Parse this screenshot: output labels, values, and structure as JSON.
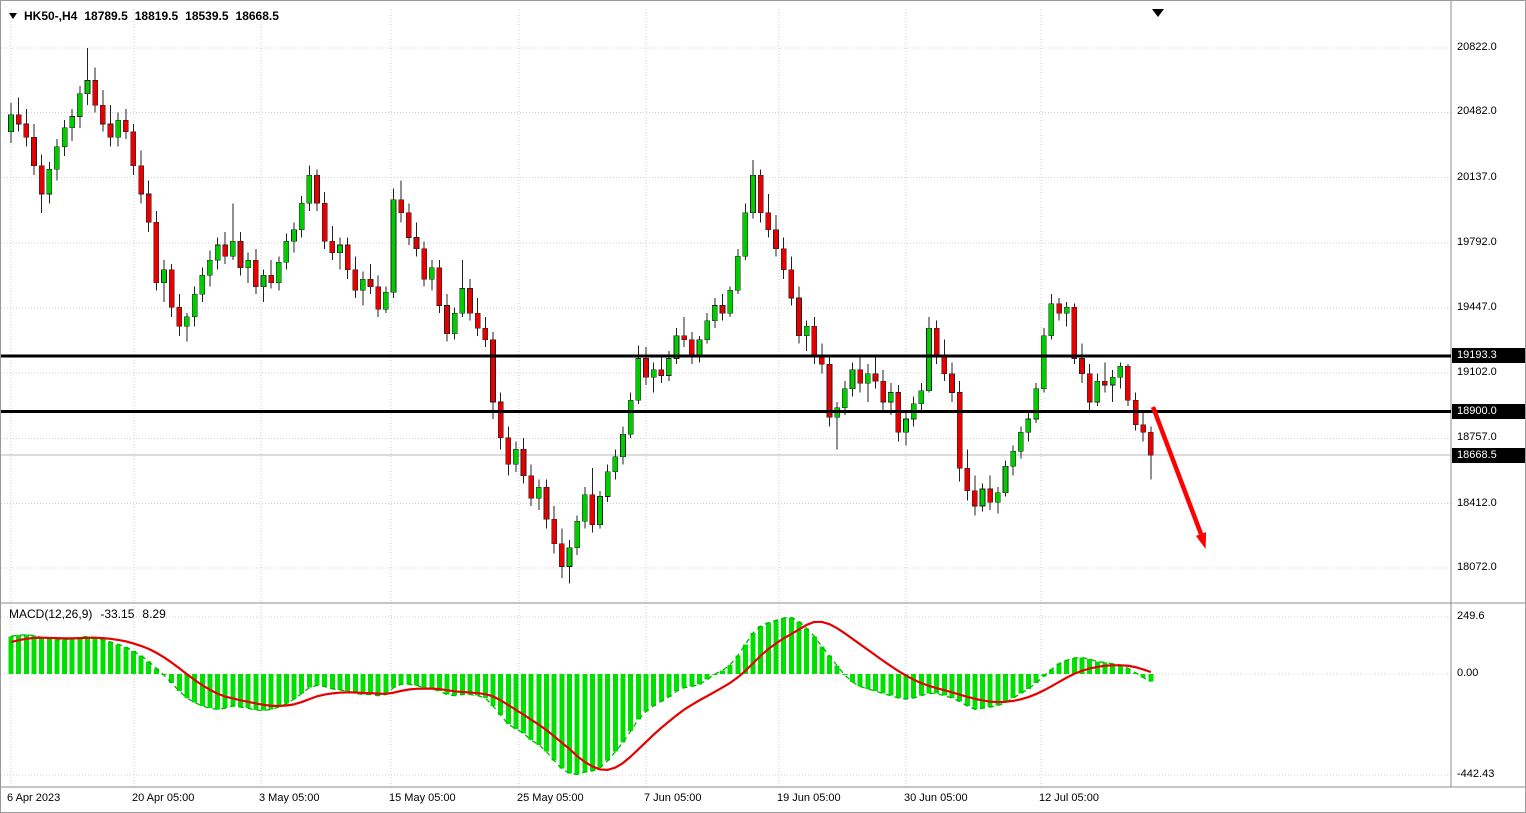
{
  "header": {
    "symbol": "HK50-,H4",
    "open": "18789.5",
    "high": "18819.5",
    "low": "18539.5",
    "close": "18668.5"
  },
  "indicator": {
    "name": "MACD(12,26,9)",
    "macd_value": "-33.15",
    "signal_value": "8.29"
  },
  "colors": {
    "background": "#ffffff",
    "up": "#00CC00",
    "down": "#E60000",
    "candle_border": "#222222",
    "macd_hist": "#00E000",
    "macd_line": "#00B400",
    "signal": "#E60000",
    "grid": "#d0d0d0",
    "level": "#000000",
    "current_line": "#b8b8b8",
    "tag_bg": "#000000",
    "tag_fg": "#ffffff",
    "arrow": "#FF0000",
    "separator": "#8c8c8c"
  },
  "chart_data": {
    "type": "candlestick",
    "title": "HK50- H4 candlestick chart with MACD(12,26,9) indicator panel",
    "legend_position": "none",
    "grid": true,
    "price_axis": {
      "tick_values": [
        20822,
        20482,
        20137,
        19792,
        19447,
        19102,
        18757,
        18412,
        18072
      ],
      "tick_labels": [
        "20822.0",
        "20482.0",
        "20137.0",
        "19792.0",
        "19447.0",
        "19102.0",
        "18757.0",
        "18412.0",
        "18072.0"
      ]
    },
    "macd_axis": {
      "tick_values": [
        249.6,
        0,
        -442.43
      ],
      "tick_labels": [
        "249.6",
        "0.00",
        "-442.43"
      ]
    },
    "x_axis": {
      "labels": [
        "6 Apr 2023",
        "20 Apr 05:00",
        "3 May 05:00",
        "15 May 05:00",
        "25 May 05:00",
        "7 Jun 05:00",
        "19 Jun 05:00",
        "30 Jun 05:00",
        "12 Jul 05:00"
      ]
    },
    "levels": [
      {
        "type": "thick",
        "price": 19193.3,
        "label": "19193.3"
      },
      {
        "type": "thick",
        "price": 18900.0,
        "label": "18900.0"
      },
      {
        "type": "current",
        "price": 18668.5,
        "label": "18668.5"
      }
    ],
    "candles": [
      [
        20380,
        20530,
        20320,
        20470
      ],
      [
        20470,
        20560,
        20380,
        20420
      ],
      [
        20420,
        20500,
        20300,
        20350
      ],
      [
        20350,
        20420,
        20150,
        20200
      ],
      [
        20200,
        20260,
        19950,
        20050
      ],
      [
        20050,
        20220,
        20000,
        20180
      ],
      [
        20180,
        20340,
        20120,
        20300
      ],
      [
        20300,
        20440,
        20250,
        20400
      ],
      [
        20400,
        20500,
        20330,
        20460
      ],
      [
        20460,
        20620,
        20400,
        20580
      ],
      [
        20580,
        20822,
        20520,
        20650
      ],
      [
        20650,
        20720,
        20480,
        20520
      ],
      [
        20520,
        20600,
        20380,
        20420
      ],
      [
        20420,
        20520,
        20300,
        20350
      ],
      [
        20350,
        20480,
        20300,
        20440
      ],
      [
        20440,
        20500,
        20340,
        20380
      ],
      [
        20380,
        20420,
        20150,
        20200
      ],
      [
        20200,
        20280,
        20000,
        20050
      ],
      [
        20050,
        20120,
        19850,
        19900
      ],
      [
        19900,
        19960,
        19540,
        19580
      ],
      [
        19580,
        19700,
        19480,
        19650
      ],
      [
        19650,
        19680,
        19400,
        19450
      ],
      [
        19450,
        19520,
        19300,
        19350
      ],
      [
        19350,
        19420,
        19270,
        19400
      ],
      [
        19400,
        19560,
        19350,
        19520
      ],
      [
        19520,
        19660,
        19480,
        19620
      ],
      [
        19620,
        19750,
        19560,
        19700
      ],
      [
        19700,
        19820,
        19650,
        19780
      ],
      [
        19780,
        19850,
        19680,
        19720
      ],
      [
        19720,
        20000,
        19700,
        19800
      ],
      [
        19800,
        19850,
        19620,
        19660
      ],
      [
        19660,
        19740,
        19580,
        19700
      ],
      [
        19700,
        19760,
        19520,
        19560
      ],
      [
        19560,
        19650,
        19480,
        19620
      ],
      [
        19620,
        19700,
        19550,
        19580
      ],
      [
        19580,
        19720,
        19540,
        19690
      ],
      [
        19690,
        19840,
        19650,
        19800
      ],
      [
        19800,
        19900,
        19740,
        19860
      ],
      [
        19860,
        20040,
        19820,
        20000
      ],
      [
        20000,
        20200,
        19960,
        20150
      ],
      [
        20150,
        20180,
        19960,
        20000
      ],
      [
        20000,
        20060,
        19760,
        19800
      ],
      [
        19800,
        19880,
        19700,
        19740
      ],
      [
        19740,
        19820,
        19650,
        19780
      ],
      [
        19780,
        19820,
        19600,
        19650
      ],
      [
        19650,
        19720,
        19500,
        19540
      ],
      [
        19540,
        19640,
        19460,
        19600
      ],
      [
        19600,
        19680,
        19520,
        19560
      ],
      [
        19560,
        19620,
        19400,
        19440
      ],
      [
        19440,
        19560,
        19420,
        19530
      ],
      [
        19530,
        20080,
        19500,
        20020
      ],
      [
        20020,
        20120,
        19900,
        19950
      ],
      [
        19950,
        20000,
        19780,
        19820
      ],
      [
        19820,
        19900,
        19720,
        19760
      ],
      [
        19760,
        19800,
        19560,
        19600
      ],
      [
        19600,
        19700,
        19540,
        19660
      ],
      [
        19660,
        19700,
        19420,
        19460
      ],
      [
        19460,
        19520,
        19270,
        19310
      ],
      [
        19310,
        19450,
        19280,
        19420
      ],
      [
        19420,
        19700,
        19400,
        19550
      ],
      [
        19550,
        19600,
        19380,
        19420
      ],
      [
        19420,
        19500,
        19300,
        19340
      ],
      [
        19340,
        19400,
        19240,
        19280
      ],
      [
        19280,
        19320,
        18860,
        18950
      ],
      [
        18950,
        19000,
        18700,
        18760
      ],
      [
        18760,
        18820,
        18560,
        18620
      ],
      [
        18620,
        18740,
        18580,
        18700
      ],
      [
        18700,
        18760,
        18520,
        18560
      ],
      [
        18560,
        18620,
        18400,
        18440
      ],
      [
        18440,
        18540,
        18380,
        18500
      ],
      [
        18500,
        18540,
        18280,
        18330
      ],
      [
        18330,
        18400,
        18150,
        18200
      ],
      [
        18200,
        18280,
        18020,
        18080
      ],
      [
        18080,
        18220,
        17990,
        18180
      ],
      [
        18180,
        18350,
        18140,
        18320
      ],
      [
        18320,
        18500,
        18280,
        18460
      ],
      [
        18460,
        18600,
        18260,
        18300
      ],
      [
        18300,
        18480,
        18280,
        18450
      ],
      [
        18450,
        18620,
        18420,
        18580
      ],
      [
        18580,
        18700,
        18540,
        18660
      ],
      [
        18660,
        18820,
        18620,
        18780
      ],
      [
        18780,
        19000,
        18760,
        18960
      ],
      [
        18960,
        19250,
        18940,
        19180
      ],
      [
        19180,
        19240,
        19040,
        19080
      ],
      [
        19080,
        19160,
        19000,
        19120
      ],
      [
        19120,
        19200,
        19050,
        19090
      ],
      [
        19090,
        19220,
        19060,
        19180
      ],
      [
        19180,
        19340,
        19150,
        19300
      ],
      [
        19300,
        19400,
        19240,
        19280
      ],
      [
        19280,
        19320,
        19150,
        19200
      ],
      [
        19200,
        19300,
        19160,
        19280
      ],
      [
        19280,
        19420,
        19260,
        19380
      ],
      [
        19380,
        19500,
        19340,
        19460
      ],
      [
        19460,
        19520,
        19380,
        19420
      ],
      [
        19420,
        19560,
        19400,
        19540
      ],
      [
        19540,
        19760,
        19520,
        19720
      ],
      [
        19720,
        20000,
        19700,
        19950
      ],
      [
        19950,
        20230,
        19920,
        20150
      ],
      [
        20150,
        20180,
        19900,
        19950
      ],
      [
        19950,
        20050,
        19820,
        19860
      ],
      [
        19860,
        19940,
        19720,
        19760
      ],
      [
        19760,
        19820,
        19600,
        19650
      ],
      [
        19650,
        19720,
        19460,
        19500
      ],
      [
        19500,
        19560,
        19260,
        19300
      ],
      [
        19300,
        19380,
        19220,
        19350
      ],
      [
        19350,
        19400,
        19150,
        19200
      ],
      [
        19200,
        19260,
        19100,
        19150
      ],
      [
        19150,
        19200,
        18820,
        18870
      ],
      [
        18870,
        18950,
        18700,
        18920
      ],
      [
        18920,
        19060,
        18880,
        19020
      ],
      [
        19020,
        19160,
        18980,
        19120
      ],
      [
        19120,
        19200,
        19000,
        19050
      ],
      [
        19050,
        19150,
        18950,
        19100
      ],
      [
        19100,
        19200,
        19020,
        19060
      ],
      [
        19060,
        19120,
        18900,
        18950
      ],
      [
        18950,
        19050,
        18880,
        19000
      ],
      [
        19000,
        19040,
        18740,
        18790
      ],
      [
        18790,
        18900,
        18720,
        18860
      ],
      [
        18860,
        18980,
        18820,
        18940
      ],
      [
        18940,
        19050,
        18900,
        19010
      ],
      [
        19010,
        19400,
        19000,
        19340
      ],
      [
        19340,
        19380,
        19150,
        19200
      ],
      [
        19200,
        19280,
        19060,
        19100
      ],
      [
        19100,
        19160,
        18950,
        19000
      ],
      [
        19000,
        19060,
        18530,
        18600
      ],
      [
        18600,
        18700,
        18430,
        18480
      ],
      [
        18480,
        18560,
        18350,
        18400
      ],
      [
        18400,
        18520,
        18370,
        18490
      ],
      [
        18490,
        18560,
        18380,
        18420
      ],
      [
        18420,
        18500,
        18360,
        18470
      ],
      [
        18470,
        18640,
        18450,
        18610
      ],
      [
        18610,
        18720,
        18560,
        18690
      ],
      [
        18690,
        18820,
        18650,
        18790
      ],
      [
        18790,
        18900,
        18740,
        18860
      ],
      [
        18860,
        19050,
        18840,
        19020
      ],
      [
        19020,
        19340,
        19000,
        19300
      ],
      [
        19300,
        19520,
        19280,
        19470
      ],
      [
        19470,
        19500,
        19380,
        19420
      ],
      [
        19420,
        19480,
        19350,
        19450
      ],
      [
        19450,
        19470,
        19150,
        19180
      ],
      [
        19180,
        19260,
        19050,
        19100
      ],
      [
        19100,
        19150,
        18900,
        18950
      ],
      [
        18950,
        19100,
        18930,
        19060
      ],
      [
        19060,
        19160,
        19000,
        19040
      ],
      [
        19040,
        19120,
        18950,
        19080
      ],
      [
        19080,
        19160,
        19020,
        19140
      ],
      [
        19140,
        19150,
        18930,
        18960
      ],
      [
        18960,
        19000,
        18800,
        18830
      ],
      [
        18830,
        18900,
        18740,
        18790
      ],
      [
        18789.5,
        18819.5,
        18539.5,
        18668.5
      ]
    ],
    "macd": {
      "histogram": [
        165,
        170,
        172,
        168,
        160,
        155,
        150,
        150,
        155,
        160,
        165,
        160,
        150,
        140,
        130,
        118,
        100,
        80,
        55,
        25,
        -5,
        -40,
        -75,
        -105,
        -125,
        -140,
        -150,
        -155,
        -150,
        -140,
        -145,
        -150,
        -158,
        -160,
        -155,
        -145,
        -130,
        -110,
        -85,
        -60,
        -50,
        -55,
        -65,
        -70,
        -75,
        -85,
        -90,
        -90,
        -95,
        -90,
        -60,
        -45,
        -45,
        -50,
        -60,
        -65,
        -75,
        -90,
        -95,
        -90,
        -90,
        -95,
        -105,
        -140,
        -180,
        -220,
        -240,
        -260,
        -290,
        -310,
        -340,
        -380,
        -415,
        -435,
        -440,
        -430,
        -425,
        -410,
        -380,
        -340,
        -300,
        -250,
        -200,
        -165,
        -140,
        -120,
        -100,
        -75,
        -60,
        -55,
        -45,
        -25,
        0,
        15,
        40,
        80,
        130,
        180,
        210,
        225,
        235,
        245,
        248,
        230,
        200,
        165,
        120,
        80,
        35,
        -5,
        -35,
        -55,
        -65,
        -75,
        -85,
        -95,
        -105,
        -110,
        -105,
        -95,
        -85,
        -85,
        -95,
        -105,
        -120,
        -140,
        -155,
        -150,
        -145,
        -138,
        -125,
        -105,
        -85,
        -65,
        -40,
        -10,
        20,
        45,
        60,
        70,
        72,
        65,
        55,
        50,
        45,
        40,
        25,
        5,
        -15,
        -33.15
      ],
      "signal": [
        140,
        148,
        154,
        158,
        159,
        158,
        157,
        156,
        156,
        157,
        158,
        159,
        157,
        154,
        149,
        143,
        134,
        123,
        110,
        93,
        73,
        50,
        25,
        -1,
        -26,
        -49,
        -69,
        -86,
        -99,
        -107,
        -115,
        -122,
        -129,
        -135,
        -139,
        -140,
        -138,
        -133,
        -123,
        -110,
        -98,
        -90,
        -85,
        -82,
        -80,
        -81,
        -83,
        -84,
        -86,
        -87,
        -82,
        -74,
        -68,
        -65,
        -64,
        -64,
        -66,
        -71,
        -76,
        -79,
        -81,
        -84,
        -88,
        -98,
        -115,
        -136,
        -157,
        -178,
        -200,
        -222,
        -246,
        -273,
        -301,
        -328,
        -360,
        -385,
        -405,
        -418,
        -420,
        -410,
        -390,
        -362,
        -330,
        -298,
        -266,
        -236,
        -208,
        -181,
        -156,
        -135,
        -115,
        -97,
        -78,
        -59,
        -39,
        -15,
        14,
        47,
        80,
        109,
        134,
        156,
        175,
        195,
        215,
        228,
        228,
        218,
        200,
        178,
        154,
        130,
        106,
        82,
        58,
        35,
        13,
        -7,
        -25,
        -40,
        -52,
        -62,
        -71,
        -80,
        -90,
        -100,
        -109,
        -116,
        -121,
        -123,
        -122,
        -118,
        -111,
        -101,
        -88,
        -72,
        -54,
        -35,
        -16,
        1,
        14,
        24,
        31,
        36,
        38,
        38,
        36,
        30,
        20,
        8.29
      ]
    }
  }
}
